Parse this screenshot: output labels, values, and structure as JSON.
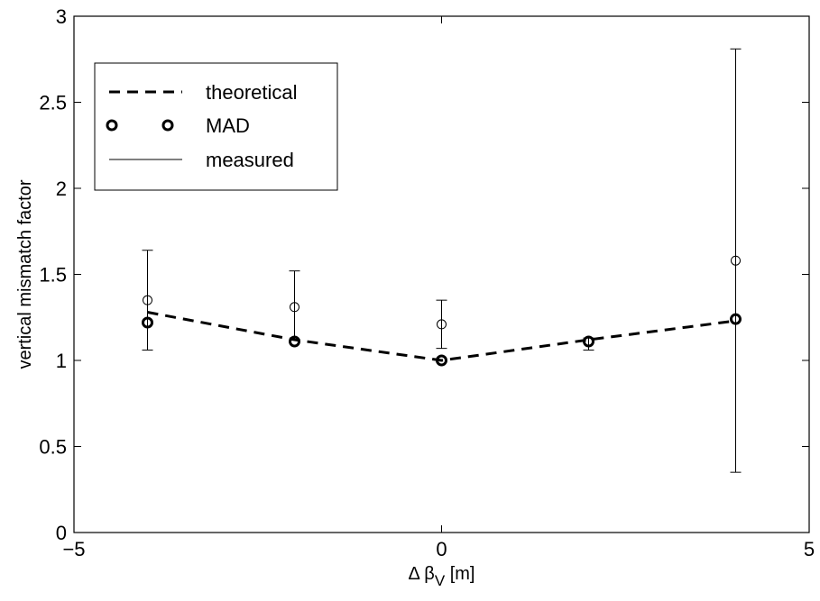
{
  "chart_data": {
    "type": "scatter",
    "xlabel": {
      "prefix": "Δ β",
      "sub": "V",
      "suffix": " [m]"
    },
    "ylabel": "vertical mismatch factor",
    "xlim": [
      -5,
      5
    ],
    "ylim": [
      0,
      3
    ],
    "xticks": [
      -5,
      0,
      5
    ],
    "xtick_labels": [
      "−5",
      "0",
      "5"
    ],
    "yticks": [
      0,
      0.5,
      1,
      1.5,
      2,
      2.5,
      3
    ],
    "ytick_labels": [
      "0",
      "0.5",
      "1",
      "1.5",
      "2",
      "2.5",
      "3"
    ],
    "grid": false,
    "legend_position": "top-left",
    "series": [
      {
        "name": "theoretical",
        "style": "dashed-line",
        "x": [
          -4,
          -2,
          0,
          2,
          4
        ],
        "y": [
          1.28,
          1.12,
          1.0,
          1.12,
          1.23
        ]
      },
      {
        "name": "MAD",
        "style": "thick-circle",
        "x": [
          -4,
          -2,
          0,
          2,
          4
        ],
        "y": [
          1.22,
          1.11,
          1.0,
          1.11,
          1.24
        ]
      },
      {
        "name": "measured",
        "style": "thin-circle-errorbar",
        "x": [
          -4,
          -2,
          0,
          2,
          4
        ],
        "y": [
          1.35,
          1.31,
          1.21,
          1.11,
          1.58
        ],
        "err_low": [
          1.06,
          1.12,
          1.07,
          1.06,
          0.35
        ],
        "err_high": [
          1.64,
          1.52,
          1.35,
          1.13,
          2.81
        ]
      }
    ]
  }
}
